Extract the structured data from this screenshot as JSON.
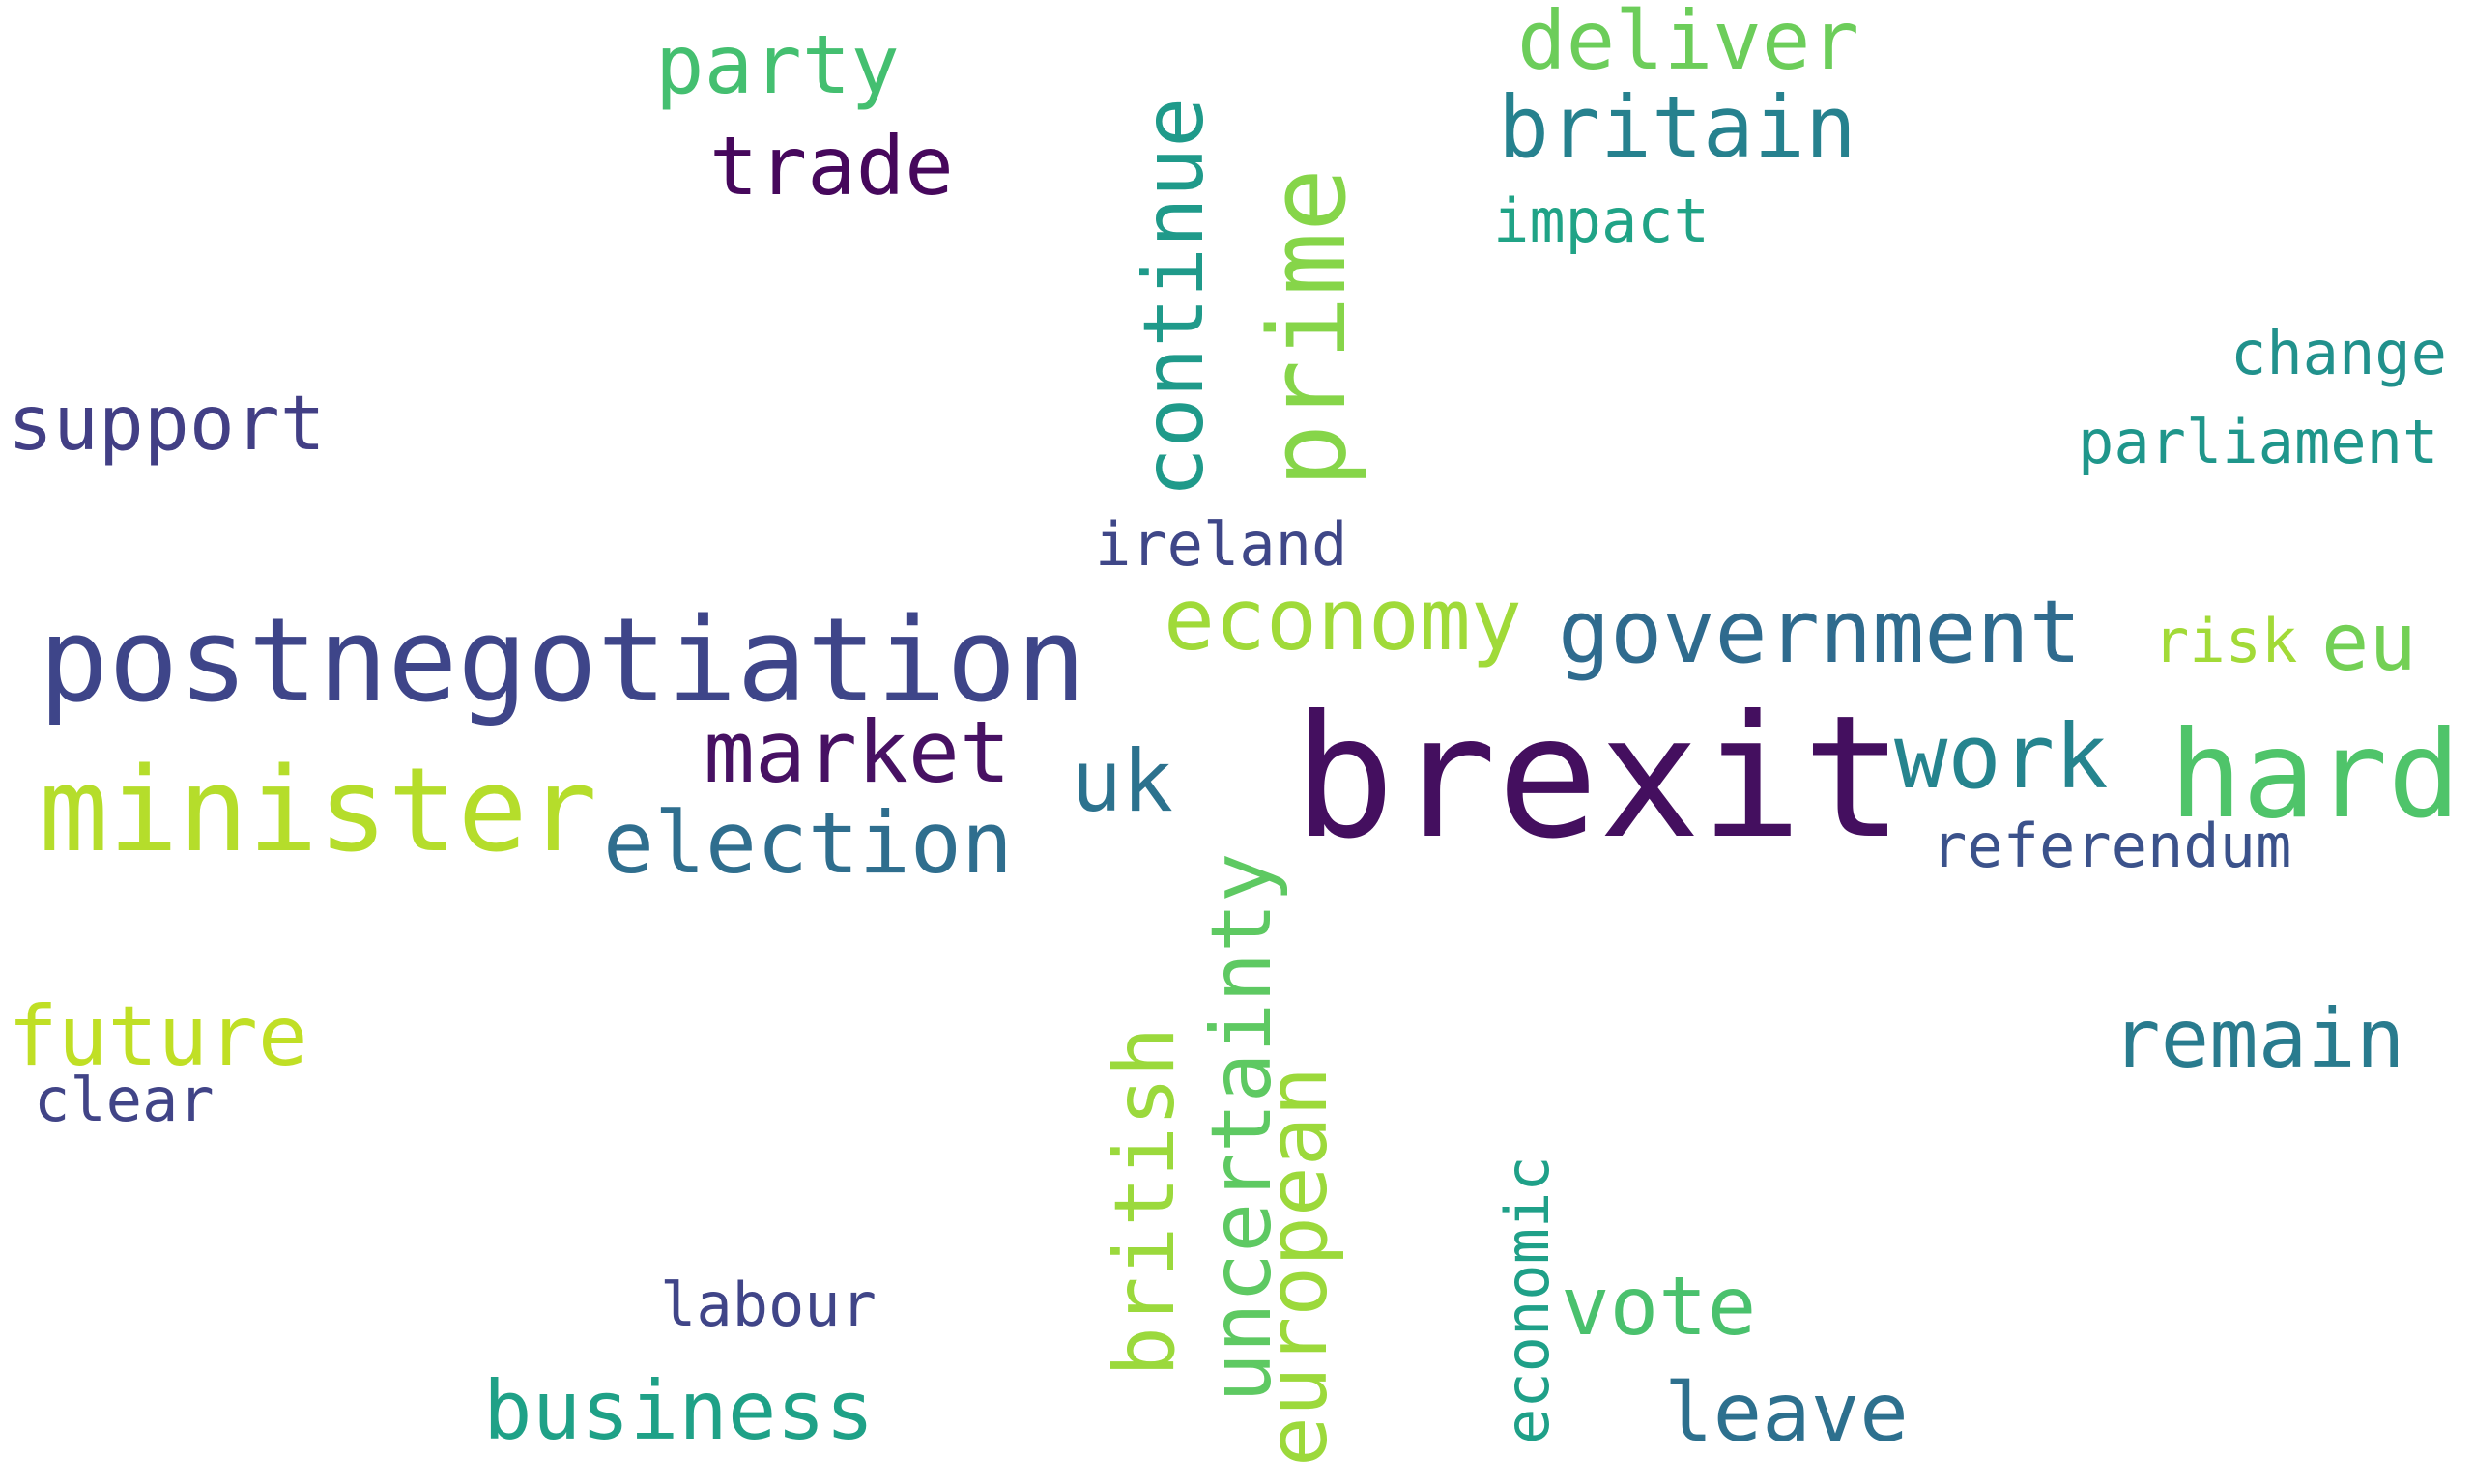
{
  "words": {
    "brexit": {
      "text": "brexit",
      "color": "#440f5f"
    },
    "postnegotiation": {
      "text": "postnegotiation",
      "color": "#3e4589"
    },
    "minister": {
      "text": "minister",
      "color": "#b5dd2b"
    },
    "hard": {
      "text": "hard",
      "color": "#4fc46a"
    },
    "prime": {
      "text": "prime",
      "color": "#86d549"
    },
    "government": {
      "text": "government",
      "color": "#2f6b8e"
    },
    "economy": {
      "text": "economy",
      "color": "#a0da39"
    },
    "election": {
      "text": "election",
      "color": "#2f6e8e"
    },
    "market": {
      "text": "market",
      "color": "#471163"
    },
    "work": {
      "text": "work",
      "color": "#25848e"
    },
    "uk": {
      "text": "uk",
      "color": "#2c728e"
    },
    "uncertainty": {
      "text": "uncertainty",
      "color": "#5ec962"
    },
    "continue": {
      "text": "continue",
      "color": "#1f9a8a"
    },
    "trade": {
      "text": "trade",
      "color": "#46085c"
    },
    "britain": {
      "text": "britain",
      "color": "#26818e"
    },
    "party": {
      "text": "party",
      "color": "#44bf70"
    },
    "deliver": {
      "text": "deliver",
      "color": "#6ccd5a"
    },
    "support": {
      "text": "support",
      "color": "#423f85"
    },
    "future": {
      "text": "future",
      "color": "#c0df25"
    },
    "remain": {
      "text": "remain",
      "color": "#297b8e"
    },
    "british": {
      "text": "british",
      "color": "#9bd93c"
    },
    "european": {
      "text": "european",
      "color": "#9cd93b"
    },
    "business": {
      "text": "business",
      "color": "#1fa187"
    },
    "vote": {
      "text": "vote",
      "color": "#4ac16d"
    },
    "leave": {
      "text": "leave",
      "color": "#2d708e"
    },
    "eu": {
      "text": "eu",
      "color": "#73d055"
    },
    "referendum": {
      "text": "referendum",
      "color": "#3b528b"
    },
    "ireland": {
      "text": "ireland",
      "color": "#3f4788"
    },
    "impact": {
      "text": "impact",
      "color": "#20a386"
    },
    "change": {
      "text": "change",
      "color": "#21918c"
    },
    "parliament": {
      "text": "parliament",
      "color": "#1f968b"
    },
    "risk": {
      "text": "risk",
      "color": "#a2da37"
    },
    "labour": {
      "text": "labour",
      "color": "#404588"
    },
    "clear": {
      "text": "clear",
      "color": "#414487"
    },
    "economic": {
      "text": "economic",
      "color": "#1fa088"
    }
  }
}
